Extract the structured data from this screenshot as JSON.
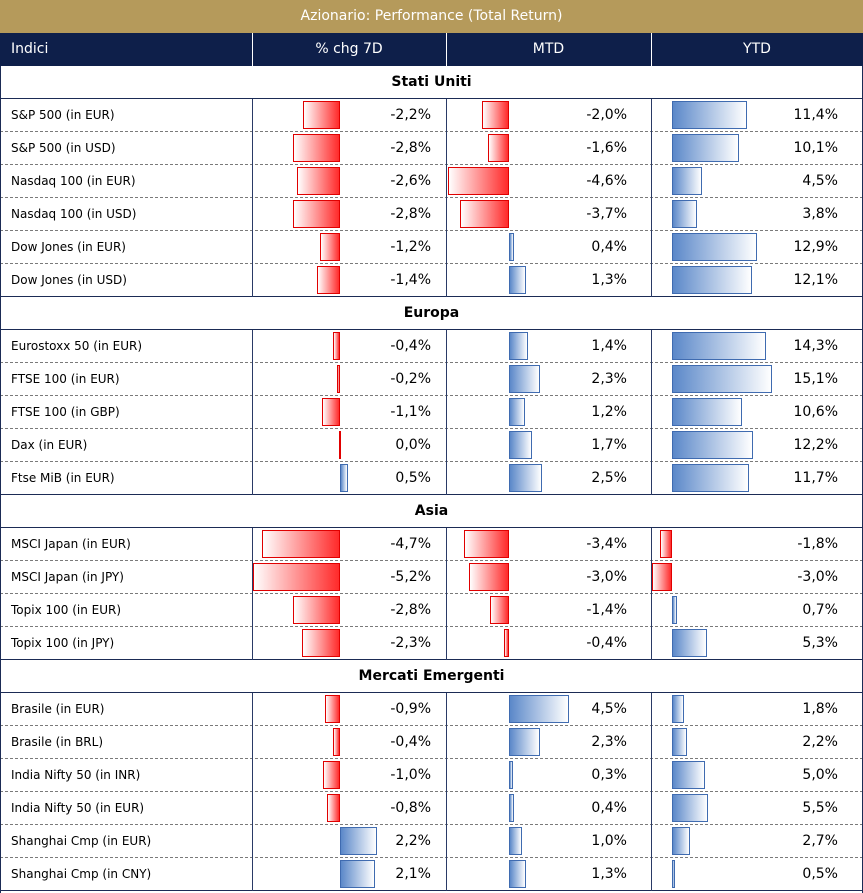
{
  "title": "Azionario: Performance (Total Return)",
  "columns": {
    "index": "Indici",
    "chg7d": "% chg 7D",
    "mtd": "MTD",
    "ytd": "YTD"
  },
  "colors": {
    "title_bg": "#b59a5b",
    "header_bg": "#0e1f4a",
    "negative_bar": "#ff2a2a",
    "positive_bar": "#5b88c9"
  },
  "chart_data": {
    "type": "table",
    "title": "Azionario: Performance (Total Return)",
    "columns": [
      "Indici",
      "% chg 7D",
      "MTD",
      "YTD"
    ],
    "sections": [
      {
        "name": "Stati Uniti",
        "rows": [
          {
            "name": "S&P 500 (in EUR)",
            "chg7d": -2.2,
            "chg7d_label": "-2,2%",
            "mtd": -2.0,
            "mtd_label": "-2,0%",
            "ytd": 11.4,
            "ytd_label": "11,4%"
          },
          {
            "name": "S&P 500 (in USD)",
            "chg7d": -2.8,
            "chg7d_label": "-2,8%",
            "mtd": -1.6,
            "mtd_label": "-1,6%",
            "ytd": 10.1,
            "ytd_label": "10,1%"
          },
          {
            "name": "Nasdaq 100 (in EUR)",
            "chg7d": -2.6,
            "chg7d_label": "-2,6%",
            "mtd": -4.6,
            "mtd_label": "-4,6%",
            "ytd": 4.5,
            "ytd_label": "4,5%"
          },
          {
            "name": "Nasdaq 100 (in USD)",
            "chg7d": -2.8,
            "chg7d_label": "-2,8%",
            "mtd": -3.7,
            "mtd_label": "-3,7%",
            "ytd": 3.8,
            "ytd_label": "3,8%"
          },
          {
            "name": "Dow Jones (in EUR)",
            "chg7d": -1.2,
            "chg7d_label": "-1,2%",
            "mtd": 0.4,
            "mtd_label": "0,4%",
            "ytd": 12.9,
            "ytd_label": "12,9%"
          },
          {
            "name": "Dow Jones (in USD)",
            "chg7d": -1.4,
            "chg7d_label": "-1,4%",
            "mtd": 1.3,
            "mtd_label": "1,3%",
            "ytd": 12.1,
            "ytd_label": "12,1%"
          }
        ]
      },
      {
        "name": "Europa",
        "rows": [
          {
            "name": "Eurostoxx 50 (in EUR)",
            "chg7d": -0.4,
            "chg7d_label": "-0,4%",
            "mtd": 1.4,
            "mtd_label": "1,4%",
            "ytd": 14.3,
            "ytd_label": "14,3%"
          },
          {
            "name": "FTSE 100 (in EUR)",
            "chg7d": -0.2,
            "chg7d_label": "-0,2%",
            "mtd": 2.3,
            "mtd_label": "2,3%",
            "ytd": 15.1,
            "ytd_label": "15,1%"
          },
          {
            "name": "FTSE 100 (in GBP)",
            "chg7d": -1.1,
            "chg7d_label": "-1,1%",
            "mtd": 1.2,
            "mtd_label": "1,2%",
            "ytd": 10.6,
            "ytd_label": "10,6%"
          },
          {
            "name": "Dax (in EUR)",
            "chg7d": 0.0,
            "chg7d_label": "0,0%",
            "mtd": 1.7,
            "mtd_label": "1,7%",
            "ytd": 12.2,
            "ytd_label": "12,2%"
          },
          {
            "name": "Ftse MiB (in EUR)",
            "chg7d": 0.5,
            "chg7d_label": "0,5%",
            "mtd": 2.5,
            "mtd_label": "2,5%",
            "ytd": 11.7,
            "ytd_label": "11,7%"
          }
        ]
      },
      {
        "name": "Asia",
        "rows": [
          {
            "name": "MSCI Japan (in EUR)",
            "chg7d": -4.7,
            "chg7d_label": "-4,7%",
            "mtd": -3.4,
            "mtd_label": "-3,4%",
            "ytd": -1.8,
            "ytd_label": "-1,8%"
          },
          {
            "name": "MSCI Japan (in JPY)",
            "chg7d": -5.2,
            "chg7d_label": "-5,2%",
            "mtd": -3.0,
            "mtd_label": "-3,0%",
            "ytd": -3.0,
            "ytd_label": "-3,0%"
          },
          {
            "name": "Topix 100 (in EUR)",
            "chg7d": -2.8,
            "chg7d_label": "-2,8%",
            "mtd": -1.4,
            "mtd_label": "-1,4%",
            "ytd": 0.7,
            "ytd_label": "0,7%"
          },
          {
            "name": "Topix 100 (in JPY)",
            "chg7d": -2.3,
            "chg7d_label": "-2,3%",
            "mtd": -0.4,
            "mtd_label": "-0,4%",
            "ytd": 5.3,
            "ytd_label": "5,3%"
          }
        ]
      },
      {
        "name": "Mercati Emergenti",
        "rows": [
          {
            "name": "Brasile (in EUR)",
            "chg7d": -0.9,
            "chg7d_label": "-0,9%",
            "mtd": 4.5,
            "mtd_label": "4,5%",
            "ytd": 1.8,
            "ytd_label": "1,8%"
          },
          {
            "name": "Brasile (in BRL)",
            "chg7d": -0.4,
            "chg7d_label": "-0,4%",
            "mtd": 2.3,
            "mtd_label": "2,3%",
            "ytd": 2.2,
            "ytd_label": "2,2%"
          },
          {
            "name": "India Nifty 50 (in INR)",
            "chg7d": -1.0,
            "chg7d_label": "-1,0%",
            "mtd": 0.3,
            "mtd_label": "0,3%",
            "ytd": 5.0,
            "ytd_label": "5,0%"
          },
          {
            "name": "India Nifty 50 (in EUR)",
            "chg7d": -0.8,
            "chg7d_label": "-0,8%",
            "mtd": 0.4,
            "mtd_label": "0,4%",
            "ytd": 5.5,
            "ytd_label": "5,5%"
          },
          {
            "name": "Shanghai Cmp (in EUR)",
            "chg7d": 2.2,
            "chg7d_label": "2,2%",
            "mtd": 1.0,
            "mtd_label": "1,0%",
            "ytd": 2.7,
            "ytd_label": "2,7%"
          },
          {
            "name": "Shanghai Cmp (in CNY)",
            "chg7d": 2.1,
            "chg7d_label": "2,1%",
            "mtd": 1.3,
            "mtd_label": "1,3%",
            "ytd": 0.5,
            "ytd_label": "0,5%"
          }
        ]
      }
    ]
  }
}
